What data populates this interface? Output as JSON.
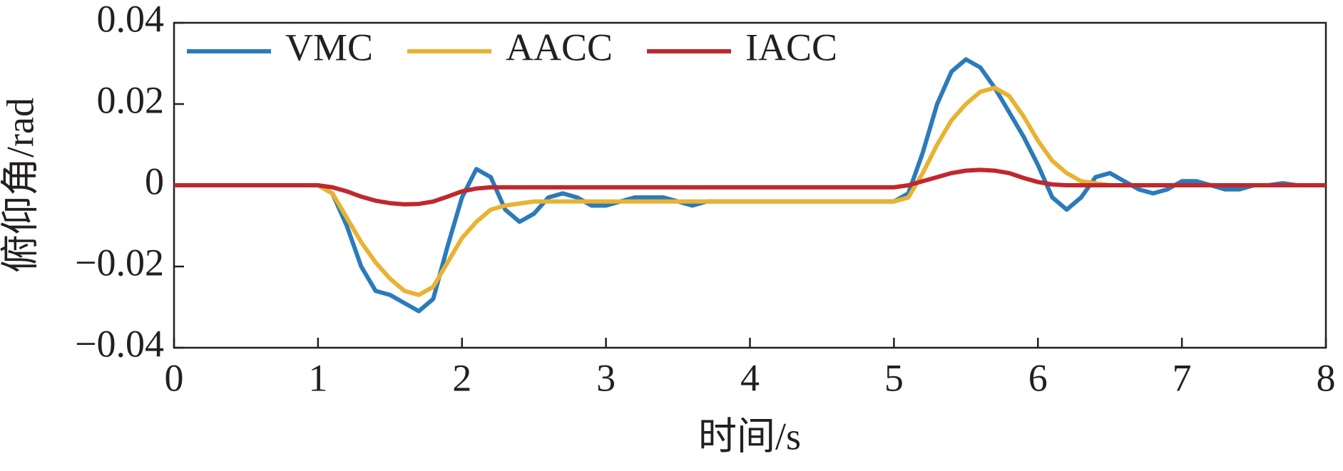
{
  "chart_data": {
    "type": "line",
    "xlabel": "时间/s",
    "ylabel": "俯仰角/rad",
    "x": [
      0,
      0.1,
      0.2,
      0.3,
      0.4,
      0.5,
      0.6,
      0.7,
      0.8,
      0.9,
      1.0,
      1.1,
      1.2,
      1.3,
      1.4,
      1.5,
      1.6,
      1.7,
      1.8,
      1.9,
      2.0,
      2.1,
      2.2,
      2.3,
      2.4,
      2.5,
      2.6,
      2.7,
      2.8,
      2.9,
      3.0,
      3.1,
      3.2,
      3.3,
      3.4,
      3.5,
      3.6,
      3.7,
      3.8,
      3.9,
      4.0,
      4.1,
      4.2,
      4.3,
      4.4,
      4.5,
      4.6,
      4.7,
      4.8,
      4.9,
      5.0,
      5.1,
      5.2,
      5.3,
      5.4,
      5.5,
      5.6,
      5.7,
      5.8,
      5.9,
      6.0,
      6.1,
      6.2,
      6.3,
      6.4,
      6.5,
      6.6,
      6.7,
      6.8,
      6.9,
      7.0,
      7.1,
      7.2,
      7.3,
      7.4,
      7.5,
      7.6,
      7.7,
      7.8,
      7.9,
      8.0
    ],
    "series": [
      {
        "name": "VMC",
        "color": "#2b7bba",
        "values": [
          0,
          0,
          0,
          0,
          0,
          0,
          0,
          0,
          0,
          0,
          0,
          -0.002,
          -0.01,
          -0.02,
          -0.026,
          -0.027,
          -0.029,
          -0.031,
          -0.028,
          -0.015,
          -0.003,
          0.004,
          0.002,
          -0.006,
          -0.009,
          -0.007,
          -0.003,
          -0.002,
          -0.003,
          -0.005,
          -0.005,
          -0.004,
          -0.003,
          -0.003,
          -0.003,
          -0.004,
          -0.005,
          -0.004,
          -0.004,
          -0.004,
          -0.004,
          -0.004,
          -0.004,
          -0.004,
          -0.004,
          -0.004,
          -0.004,
          -0.004,
          -0.004,
          -0.004,
          -0.004,
          -0.002,
          0.008,
          0.02,
          0.028,
          0.031,
          0.029,
          0.024,
          0.018,
          0.012,
          0.005,
          -0.003,
          -0.006,
          -0.003,
          0.002,
          0.003,
          0.001,
          -0.001,
          -0.002,
          -0.001,
          0.001,
          0.001,
          0,
          -0.001,
          -0.001,
          0,
          0,
          0.0005,
          0,
          0,
          0
        ]
      },
      {
        "name": "AACC",
        "color": "#e9b232",
        "values": [
          0,
          0,
          0,
          0,
          0,
          0,
          0,
          0,
          0,
          0,
          0,
          -0.002,
          -0.008,
          -0.014,
          -0.019,
          -0.023,
          -0.026,
          -0.027,
          -0.025,
          -0.019,
          -0.013,
          -0.009,
          -0.006,
          -0.005,
          -0.0045,
          -0.004,
          -0.004,
          -0.004,
          -0.004,
          -0.004,
          -0.004,
          -0.004,
          -0.004,
          -0.004,
          -0.004,
          -0.004,
          -0.004,
          -0.004,
          -0.004,
          -0.004,
          -0.004,
          -0.004,
          -0.004,
          -0.004,
          -0.004,
          -0.004,
          -0.004,
          -0.004,
          -0.004,
          -0.004,
          -0.004,
          -0.003,
          0.003,
          0.01,
          0.016,
          0.02,
          0.023,
          0.024,
          0.022,
          0.017,
          0.011,
          0.006,
          0.003,
          0.001,
          0.0005,
          0,
          0,
          0,
          0,
          0,
          0,
          0,
          0,
          0,
          0,
          0,
          0,
          0,
          0,
          0,
          0
        ]
      },
      {
        "name": "IACC",
        "color": "#c0282c",
        "values": [
          0,
          0,
          0,
          0,
          0,
          0,
          0,
          0,
          0,
          0,
          0,
          -0.0005,
          -0.0015,
          -0.0028,
          -0.0038,
          -0.0044,
          -0.0047,
          -0.0046,
          -0.004,
          -0.0028,
          -0.0015,
          -0.0008,
          -0.0005,
          -0.0005,
          -0.0005,
          -0.0005,
          -0.0005,
          -0.0005,
          -0.0005,
          -0.0005,
          -0.0005,
          -0.0005,
          -0.0005,
          -0.0005,
          -0.0005,
          -0.0005,
          -0.0005,
          -0.0005,
          -0.0005,
          -0.0005,
          -0.0005,
          -0.0005,
          -0.0005,
          -0.0005,
          -0.0005,
          -0.0005,
          -0.0005,
          -0.0005,
          -0.0005,
          -0.0005,
          -0.0005,
          0,
          0.001,
          0.002,
          0.003,
          0.0036,
          0.0038,
          0.0036,
          0.003,
          0.0018,
          0.0008,
          0.0002,
          0,
          0,
          0,
          0,
          0,
          0,
          0,
          0,
          0,
          0,
          0,
          0,
          0,
          0,
          0,
          0,
          0,
          0,
          0
        ]
      }
    ],
    "xlim": [
      0,
      8
    ],
    "xticks": [
      0,
      1,
      2,
      3,
      4,
      5,
      6,
      7,
      8
    ],
    "ylim": [
      -0.04,
      0.04
    ],
    "yticks": [
      {
        "value": -0.04,
        "label": "−0.04"
      },
      {
        "value": -0.02,
        "label": "−0.02"
      },
      0,
      0.02,
      0.04
    ],
    "legend": "upper left"
  }
}
